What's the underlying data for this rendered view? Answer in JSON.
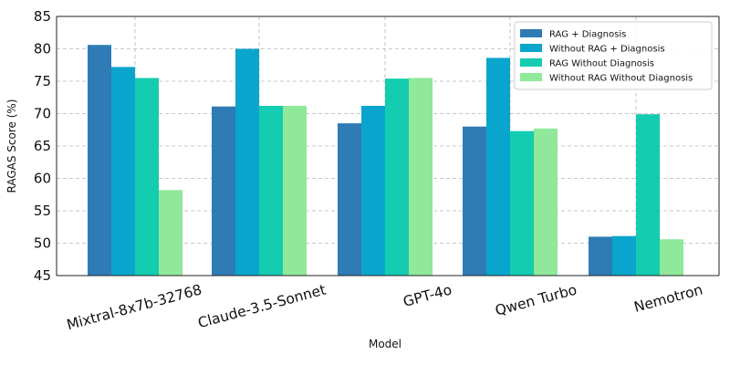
{
  "chart_data": {
    "type": "bar",
    "title": "",
    "xlabel": "Model",
    "ylabel": "RAGAS Score (%)",
    "ylim": [
      45,
      85
    ],
    "yticks": [
      45,
      50,
      55,
      60,
      65,
      70,
      75,
      80,
      85
    ],
    "grid": true,
    "legend_position": "top-right",
    "categories": [
      "Mixtral-8x7b-32768",
      "Claude-3.5-Sonnet",
      "GPT-4o",
      "Qwen Turbo",
      "Nemotron"
    ],
    "series": [
      {
        "name": "RAG + Diagnosis",
        "color": "#2e7bb6",
        "values": [
          80.6,
          71.1,
          68.5,
          68.0,
          51.0
        ]
      },
      {
        "name": "Without RAG + Diagnosis",
        "color": "#0aa5cc",
        "values": [
          77.2,
          80.0,
          71.2,
          78.6,
          51.1
        ]
      },
      {
        "name": "RAG Without Diagnosis",
        "color": "#14ccb0",
        "values": [
          75.5,
          71.2,
          75.4,
          67.3,
          69.9
        ]
      },
      {
        "name": "Without RAG Without Diagnosis",
        "color": "#90e89a",
        "values": [
          58.2,
          71.2,
          75.5,
          67.7,
          50.6
        ]
      }
    ]
  }
}
